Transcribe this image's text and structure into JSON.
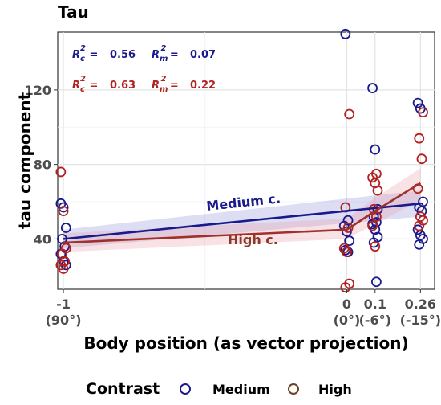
{
  "chart_data": {
    "type": "scatter",
    "title": "Tau",
    "xlabel": "Body position (as vector projection)",
    "ylabel": "tau component",
    "xlim": [
      -1.02,
      0.31
    ],
    "ylim": [
      13,
      151
    ],
    "yticks": [
      40,
      80,
      120
    ],
    "xticks": [
      {
        "value": -1,
        "label": "-1",
        "sublabel": "(90°)"
      },
      {
        "value": 0,
        "label": "0",
        "sublabel": "(0°)"
      },
      {
        "value": 0.1,
        "label": "0.1",
        "sublabel": "(-6°)"
      },
      {
        "value": 0.26,
        "label": "0.26",
        "sublabel": "(-15°)"
      }
    ],
    "grid": true,
    "legend": {
      "title": "Contrast",
      "position": "bottom"
    },
    "series": [
      {
        "name": "Medium",
        "color": "#1a1a8c",
        "line_label": "Medium c.",
        "points": [
          [
            -1,
            59
          ],
          [
            -1,
            57
          ],
          [
            -1,
            46
          ],
          [
            -1,
            40
          ],
          [
            -1,
            36
          ],
          [
            -1,
            32
          ],
          [
            -1,
            28
          ],
          [
            -1,
            26
          ],
          [
            0,
            150
          ],
          [
            0,
            50
          ],
          [
            0,
            47
          ],
          [
            0,
            44
          ],
          [
            0,
            39
          ],
          [
            0,
            34
          ],
          [
            0,
            33
          ],
          [
            0.1,
            121
          ],
          [
            0.1,
            88
          ],
          [
            0.1,
            56
          ],
          [
            0.1,
            52
          ],
          [
            0.1,
            49
          ],
          [
            0.1,
            48
          ],
          [
            0.1,
            45
          ],
          [
            0.1,
            41
          ],
          [
            0.1,
            38
          ],
          [
            0.1,
            17
          ],
          [
            0.26,
            113
          ],
          [
            0.26,
            110
          ],
          [
            0.26,
            60
          ],
          [
            0.26,
            57
          ],
          [
            0.26,
            55
          ],
          [
            0.26,
            45
          ],
          [
            0.26,
            42
          ],
          [
            0.26,
            40
          ],
          [
            0.26,
            37
          ]
        ],
        "fit": [
          [
            -1,
            40
          ],
          [
            0.26,
            59
          ]
        ],
        "ci": [
          [
            -1,
            35,
            45
          ],
          [
            0.26,
            52,
            66
          ]
        ]
      },
      {
        "name": "High",
        "color": "#b22222",
        "line_label": "High c.",
        "points": [
          [
            -1,
            76
          ],
          [
            -1,
            55
          ],
          [
            -1,
            35
          ],
          [
            -1,
            32
          ],
          [
            -1,
            28
          ],
          [
            -1,
            26
          ],
          [
            -1,
            24
          ],
          [
            0,
            107
          ],
          [
            0,
            57
          ],
          [
            0,
            46
          ],
          [
            0,
            35
          ],
          [
            0,
            33
          ],
          [
            0,
            16
          ],
          [
            0,
            14
          ],
          [
            0.1,
            75
          ],
          [
            0.1,
            73
          ],
          [
            0.1,
            70
          ],
          [
            0.1,
            66
          ],
          [
            0.1,
            56
          ],
          [
            0.1,
            52
          ],
          [
            0.1,
            47
          ],
          [
            0.1,
            36
          ],
          [
            0.26,
            108
          ],
          [
            0.26,
            94
          ],
          [
            0.26,
            83
          ],
          [
            0.26,
            67
          ],
          [
            0.26,
            52
          ],
          [
            0.26,
            50
          ],
          [
            0.26,
            47
          ]
        ],
        "fit": [
          [
            -1,
            38
          ],
          [
            0,
            45
          ],
          [
            0.1,
            55
          ],
          [
            0.26,
            70
          ]
        ],
        "ci": [
          [
            -1,
            33,
            43
          ],
          [
            0,
            40,
            51
          ],
          [
            0.1,
            48,
            62
          ],
          [
            0.26,
            61,
            78
          ]
        ]
      }
    ],
    "annotations": [
      {
        "series": "Medium",
        "text": "R_c^2 = 0.56   R_m^2 = 0.07",
        "rc2": "0.56",
        "rm2": "0.07"
      },
      {
        "series": "High",
        "text": "R_c^2 = 0.63   R_m^2 = 0.22",
        "rc2": "0.63",
        "rm2": "0.22"
      }
    ]
  },
  "legend_labels": {
    "medium": "Medium",
    "high": "High"
  }
}
